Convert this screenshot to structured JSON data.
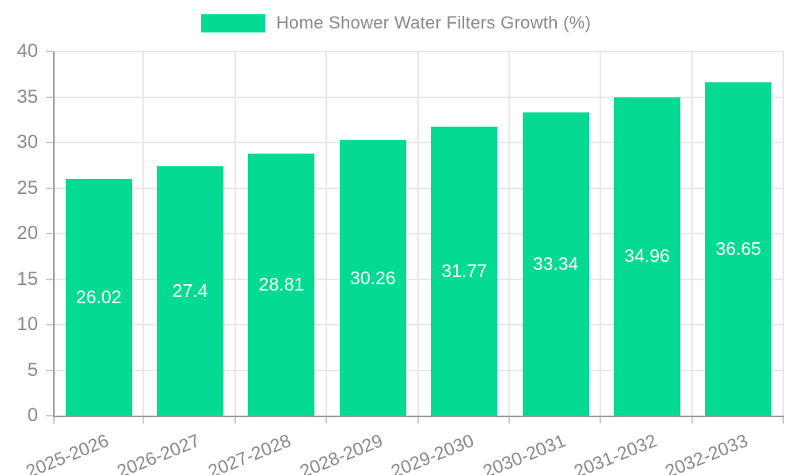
{
  "chart_data": {
    "type": "bar",
    "legend": "Home Shower Water Filters Growth (%)",
    "categories": [
      "2025-2026",
      "2026-2027",
      "2027-2028",
      "2028-2029",
      "2029-2030",
      "2030-2031",
      "2031-2032",
      "2032-2033"
    ],
    "values": [
      26.02,
      27.4,
      28.81,
      30.26,
      31.77,
      33.34,
      34.96,
      36.65
    ],
    "value_labels": [
      "26.02",
      "27.4",
      "28.81",
      "30.26",
      "31.77",
      "33.34",
      "34.96",
      "36.65"
    ],
    "ylim": [
      0,
      40
    ],
    "yticks": [
      0,
      5,
      10,
      15,
      20,
      25,
      30,
      35,
      40
    ],
    "ytick_labels": [
      "0",
      "5",
      "10",
      "15",
      "20",
      "25",
      "30",
      "35",
      "40"
    ],
    "grid": true,
    "legend_position": "top-center",
    "value_label_position": "inside-center",
    "colors": {
      "bar": "#04da92",
      "axis_label": "#8a8a8a",
      "legend_text": "#8a8a8a",
      "value_label": "#ffffff",
      "gridline": "#e8e8e8",
      "axis_line": "#9e9e9e",
      "tick": "#cccccc",
      "background": "#ffffff"
    }
  }
}
